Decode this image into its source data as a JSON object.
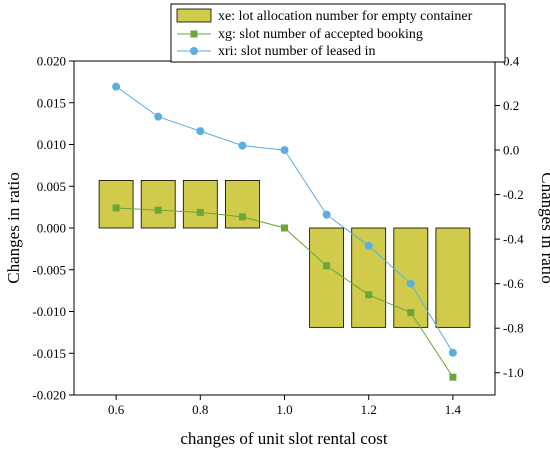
{
  "chart_data": {
    "type": "bar+line",
    "x": [
      0.6,
      0.7,
      0.8,
      0.9,
      1.0,
      1.1,
      1.2,
      1.3,
      1.4
    ],
    "xlabel": "changes of unit slot rental cost",
    "xlim": [
      0.5,
      1.5
    ],
    "xticks": [
      "0.6",
      "0.8",
      "1.0",
      "1.2",
      "1.4"
    ],
    "xtick_values": [
      0.6,
      0.8,
      1.0,
      1.2,
      1.4
    ],
    "left_axis": {
      "label": "Changes in ratio",
      "ylim": [
        -0.02,
        0.02
      ],
      "ticks": [
        "-0.020",
        "-0.015",
        "-0.010",
        "-0.005",
        "0.000",
        "0.005",
        "0.010",
        "0.015",
        "0.020"
      ],
      "tick_values": [
        -0.02,
        -0.015,
        -0.01,
        -0.005,
        0.0,
        0.005,
        0.01,
        0.015,
        0.02
      ]
    },
    "right_axis": {
      "label": "Changes in ratio",
      "ylim": [
        -1.1,
        0.4
      ],
      "ticks": [
        "-1.0",
        "-0.8",
        "-0.6",
        "-0.4",
        "-0.2",
        "0.0",
        "0.2",
        "0.4"
      ],
      "tick_values": [
        -1.0,
        -0.8,
        -0.6,
        -0.4,
        -0.2,
        0.0,
        0.2,
        0.4
      ]
    },
    "series": [
      {
        "name": "xe: lot allocation number for empty container",
        "kind": "bar",
        "axis": "left",
        "color": "#d0cb4a",
        "values": [
          0.0057,
          0.0057,
          0.0057,
          0.0057,
          0.0,
          -0.0119,
          -0.0119,
          -0.0119,
          -0.0119
        ]
      },
      {
        "name": "xg: slot number of accepted booking",
        "kind": "line",
        "marker": "square",
        "axis": "right",
        "color": "#6aa63c",
        "values": [
          -0.26,
          -0.27,
          -0.28,
          -0.3,
          -0.35,
          -0.52,
          -0.65,
          -0.73,
          -1.02
        ]
      },
      {
        "name": "xri: slot number of leased in",
        "kind": "line",
        "marker": "circle",
        "axis": "right",
        "color": "#5aaee0",
        "values": [
          0.285,
          0.15,
          0.085,
          0.02,
          0.0,
          -0.29,
          -0.43,
          -0.6,
          -0.91
        ]
      }
    ],
    "legend_placement": "top-center",
    "grid": false
  }
}
